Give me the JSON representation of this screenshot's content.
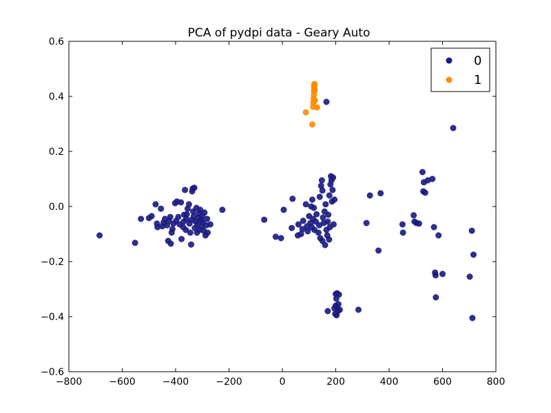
{
  "chart_data": {
    "type": "scatter",
    "title": "PCA of pydpi data - Geary Auto",
    "xlabel": "",
    "ylabel": "",
    "xlim": [
      -800,
      800
    ],
    "ylim": [
      -0.6,
      0.6
    ],
    "xticks": [
      -800,
      -600,
      -400,
      -200,
      0,
      200,
      400,
      600,
      800
    ],
    "xtick_labels": [
      "−800",
      "−600",
      "−400",
      "−200",
      "0",
      "200",
      "400",
      "600",
      "800"
    ],
    "yticks": [
      -0.6,
      -0.4,
      -0.2,
      0.0,
      0.2,
      0.4,
      0.6
    ],
    "ytick_labels": [
      "−0.6",
      "−0.4",
      "−0.2",
      "0.0",
      "0.2",
      "0.4",
      "0.6"
    ],
    "grid": false,
    "legend_position": "top-right",
    "series": [
      {
        "name": "0",
        "color": "#1a1a80",
        "points": [
          [
            -685,
            -0.105
          ],
          [
            -552,
            -0.132
          ],
          [
            -530,
            -0.045
          ],
          [
            -500,
            -0.042
          ],
          [
            -490,
            -0.035
          ],
          [
            -475,
            0.008
          ],
          [
            -470,
            -0.062
          ],
          [
            -468,
            -0.075
          ],
          [
            -455,
            -0.008
          ],
          [
            -450,
            -0.072
          ],
          [
            -445,
            -0.058
          ],
          [
            -440,
            -0.045
          ],
          [
            -432,
            -0.068
          ],
          [
            -428,
            -0.125
          ],
          [
            -425,
            -0.052
          ],
          [
            -420,
            -0.038
          ],
          [
            -418,
            -0.135
          ],
          [
            -415,
            -0.095
          ],
          [
            -412,
            -0.082
          ],
          [
            -408,
            -0.062
          ],
          [
            -402,
            0.012
          ],
          [
            -398,
            -0.052
          ],
          [
            -395,
            0.018
          ],
          [
            -390,
            -0.038
          ],
          [
            -385,
            -0.065
          ],
          [
            -380,
            0.015
          ],
          [
            -378,
            -0.118
          ],
          [
            -372,
            -0.075
          ],
          [
            -370,
            -0.055
          ],
          [
            -368,
            -0.03
          ],
          [
            -365,
            0.06
          ],
          [
            -362,
            -0.085
          ],
          [
            -360,
            -0.045
          ],
          [
            -358,
            -0.028
          ],
          [
            -355,
            -0.008
          ],
          [
            -350,
            0.008
          ],
          [
            -348,
            -0.062
          ],
          [
            -345,
            -0.095
          ],
          [
            -342,
            -0.138
          ],
          [
            -340,
            -0.048
          ],
          [
            -338,
            0.055
          ],
          [
            -336,
            0.065
          ],
          [
            -334,
            -0.018
          ],
          [
            -332,
            -0.035
          ],
          [
            -330,
            0.068
          ],
          [
            -328,
            -0.078
          ],
          [
            -325,
            -0.055
          ],
          [
            -322,
            -0.005
          ],
          [
            -320,
            -0.095
          ],
          [
            -318,
            -0.065
          ],
          [
            -315,
            -0.042
          ],
          [
            -312,
            -0.025
          ],
          [
            -310,
            -0.085
          ],
          [
            -308,
            -0.012
          ],
          [
            -305,
            -0.048
          ],
          [
            -302,
            -0.072
          ],
          [
            -300,
            -0.035
          ],
          [
            -298,
            -0.058
          ],
          [
            -295,
            -0.088
          ],
          [
            -292,
            -0.022
          ],
          [
            -288,
            -0.105
          ],
          [
            -285,
            -0.068
          ],
          [
            -282,
            -0.045
          ],
          [
            -280,
            -0.095
          ],
          [
            -270,
            -0.065
          ],
          [
            -225,
            -0.012
          ],
          [
            -68,
            -0.048
          ],
          [
            -25,
            -0.11
          ],
          [
            -5,
            -0.115
          ],
          [
            5,
            -0.012
          ],
          [
            35,
            -0.078
          ],
          [
            38,
            0.028
          ],
          [
            58,
            -0.105
          ],
          [
            60,
            -0.065
          ],
          [
            70,
            -0.1
          ],
          [
            75,
            -0.082
          ],
          [
            78,
            -0.052
          ],
          [
            88,
            0.008
          ],
          [
            92,
            -0.072
          ],
          [
            95,
            -0.09
          ],
          [
            100,
            -0.035
          ],
          [
            105,
            -0.06
          ],
          [
            108,
            0.0
          ],
          [
            110,
            -0.075
          ],
          [
            112,
            0.025
          ],
          [
            115,
            -0.045
          ],
          [
            118,
            -0.005
          ],
          [
            120,
            -0.085
          ],
          [
            125,
            -0.055
          ],
          [
            128,
            -0.028
          ],
          [
            135,
            -0.095
          ],
          [
            138,
            -0.068
          ],
          [
            140,
            0.035
          ],
          [
            142,
            -0.115
          ],
          [
            145,
            0.075
          ],
          [
            148,
            0.095
          ],
          [
            150,
            0.058
          ],
          [
            150,
            -0.125
          ],
          [
            152,
            -0.04
          ],
          [
            155,
            -0.06
          ],
          [
            158,
            -0.018
          ],
          [
            160,
            -0.14
          ],
          [
            162,
            0.008
          ],
          [
            165,
            -0.085
          ],
          [
            168,
            -0.105
          ],
          [
            170,
            -0.055
          ],
          [
            172,
            -0.03
          ],
          [
            175,
            -0.12
          ],
          [
            176,
            0.04
          ],
          [
            178,
            -0.075
          ],
          [
            180,
            0.08
          ],
          [
            182,
            0.11
          ],
          [
            184,
            0.095
          ],
          [
            186,
            0.018
          ],
          [
            188,
            0.06
          ],
          [
            190,
            0.105
          ],
          [
            192,
            -0.065
          ],
          [
            195,
            0.025
          ],
          [
            165,
            0.38
          ],
          [
            170,
            -0.38
          ],
          [
            195,
            -0.37
          ],
          [
            198,
            -0.39
          ],
          [
            200,
            -0.36
          ],
          [
            202,
            -0.335
          ],
          [
            205,
            -0.315
          ],
          [
            208,
            -0.38
          ],
          [
            210,
            -0.355
          ],
          [
            212,
            -0.32
          ],
          [
            215,
            -0.375
          ],
          [
            200,
            -0.318
          ],
          [
            203,
            -0.395
          ],
          [
            285,
            -0.375
          ],
          [
            315,
            -0.06
          ],
          [
            328,
            0.04
          ],
          [
            360,
            -0.16
          ],
          [
            368,
            0.048
          ],
          [
            450,
            -0.065
          ],
          [
            452,
            -0.095
          ],
          [
            492,
            -0.032
          ],
          [
            495,
            -0.055
          ],
          [
            502,
            -0.06
          ],
          [
            512,
            -0.062
          ],
          [
            525,
            0.125
          ],
          [
            528,
            0.055
          ],
          [
            530,
            0.088
          ],
          [
            535,
            0.05
          ],
          [
            545,
            0.095
          ],
          [
            562,
            0.1
          ],
          [
            568,
            -0.075
          ],
          [
            572,
            -0.24
          ],
          [
            574,
            -0.25
          ],
          [
            575,
            -0.33
          ],
          [
            585,
            -0.105
          ],
          [
            600,
            -0.245
          ],
          [
            640,
            0.285
          ],
          [
            702,
            -0.255
          ],
          [
            710,
            -0.088
          ],
          [
            712,
            -0.405
          ],
          [
            716,
            -0.175
          ]
        ]
      },
      {
        "name": "1",
        "color": "#ff8c00",
        "points": [
          [
            88,
            0.342
          ],
          [
            112,
            0.298
          ],
          [
            115,
            0.362
          ],
          [
            116,
            0.378
          ],
          [
            117,
            0.392
          ],
          [
            118,
            0.405
          ],
          [
            118,
            0.418
          ],
          [
            119,
            0.428
          ],
          [
            119,
            0.435
          ],
          [
            120,
            0.44
          ],
          [
            120,
            0.445
          ],
          [
            121,
            0.422
          ],
          [
            122,
            0.385
          ],
          [
            130,
            0.36
          ]
        ]
      }
    ]
  }
}
